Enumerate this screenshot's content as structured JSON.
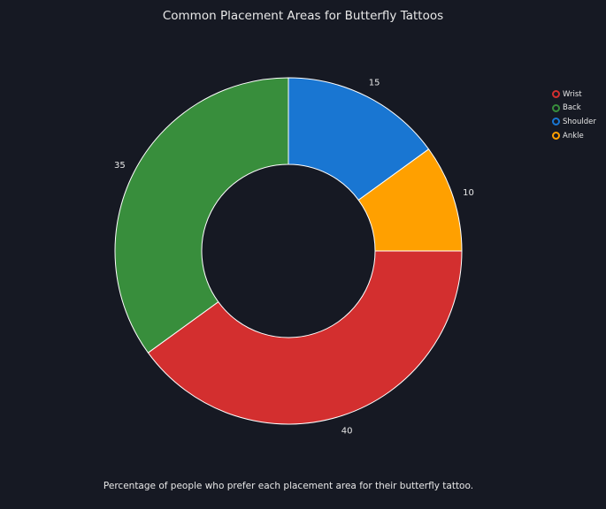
{
  "title": "Common Placement Areas for Butterfly Tattoos",
  "caption": "Percentage of people who prefer each placement area for their butterfly tattoo.",
  "legend_position": "top-right",
  "chart_data": {
    "type": "pie",
    "donut": true,
    "title": "Common Placement Areas for Butterfly Tattoos",
    "categories": [
      "Wrist",
      "Back",
      "Shoulder",
      "Ankle"
    ],
    "values": [
      40,
      35,
      15,
      10
    ],
    "colors": [
      "#d32f2f",
      "#388e3c",
      "#1976d2",
      "#ffa000"
    ],
    "data_labels": [
      "40",
      "35",
      "15",
      "10"
    ]
  },
  "legend": [
    {
      "label": "Wrist",
      "color": "#d32f2f"
    },
    {
      "label": "Back",
      "color": "#388e3c"
    },
    {
      "label": "Shoulder",
      "color": "#1976d2"
    },
    {
      "label": "Ankle",
      "color": "#ffa000"
    }
  ],
  "colors": {
    "background": "#161923",
    "slice_border": "#ffffff",
    "text": "#e8e8e8"
  }
}
